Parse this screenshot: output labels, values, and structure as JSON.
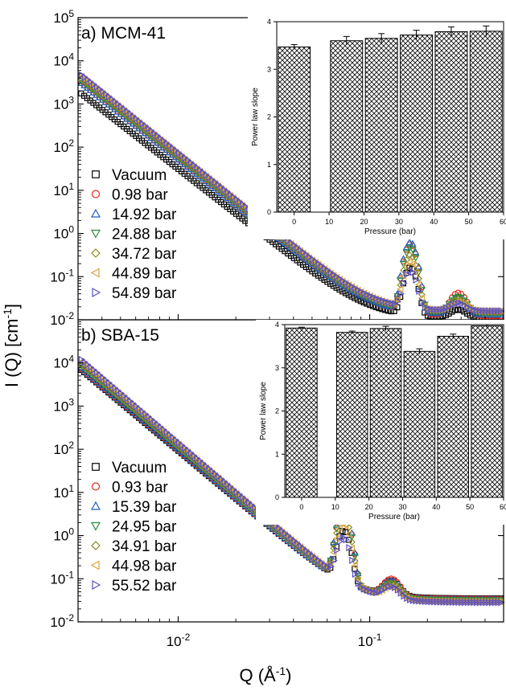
{
  "figure": {
    "ylabel": "I (Q) [cm",
    "ylabel_sup": "-1",
    "ylabel_end": "]",
    "xlabel": "Q (Å",
    "xlabel_sup": "-1",
    "xlabel_end": ")"
  },
  "chart_data": [
    {
      "type": "scatter",
      "panel_label": "a) MCM-41",
      "x_scale": "log",
      "y_scale": "log",
      "xlim": [
        0.003,
        0.5
      ],
      "ylim": [
        0.01,
        100000
      ],
      "x_ticks": [
        {
          "base": "10",
          "exp": "-2",
          "value": 0.01
        },
        {
          "base": "10",
          "exp": "-1",
          "value": 0.1
        }
      ],
      "y_ticks": [
        {
          "base": "10",
          "exp": "-2",
          "value": 0.01
        },
        {
          "base": "10",
          "exp": "-1",
          "value": 0.1
        },
        {
          "base": "10",
          "exp": "0",
          "value": 1
        },
        {
          "base": "10",
          "exp": "1",
          "value": 10
        },
        {
          "base": "10",
          "exp": "2",
          "value": 100
        },
        {
          "base": "10",
          "exp": "3",
          "value": 1000
        },
        {
          "base": "10",
          "exp": "4",
          "value": 10000
        },
        {
          "base": "10",
          "exp": "5",
          "value": 100000
        }
      ],
      "legend_position": "left",
      "series": [
        {
          "name": "Vacuum",
          "marker": "square",
          "color": "#000000",
          "y_at_qmin": 2000,
          "slope": -3.45,
          "peak_height": 0.15,
          "bg": 0.011,
          "peak2_height": 0.006
        },
        {
          "name": "0.98 bar",
          "marker": "circle",
          "color": "#e8291c",
          "y_at_qmin": 3500,
          "slope": -3.48,
          "peak_height": 0.55,
          "bg": 0.012,
          "peak2_height": 0.03
        },
        {
          "name": "14.92 bar",
          "marker": "triangle-up",
          "color": "#1f5fbf",
          "y_at_qmin": 3500,
          "slope": -3.5,
          "peak_height": 0.62,
          "bg": 0.013,
          "peak2_height": 0.02
        },
        {
          "name": "24.88 bar",
          "marker": "triangle-down",
          "color": "#2e8b3a",
          "y_at_qmin": 4000,
          "slope": -3.52,
          "peak_height": 0.45,
          "bg": 0.014,
          "peak2_height": 0.02
        },
        {
          "name": "34.72 bar",
          "marker": "diamond",
          "color": "#8a8a1f",
          "y_at_qmin": 4500,
          "slope": -3.54,
          "peak_height": 0.3,
          "bg": 0.015,
          "peak2_height": 0.015
        },
        {
          "name": "44.89 bar",
          "marker": "triangle-left",
          "color": "#d9a33c",
          "y_at_qmin": 5000,
          "slope": -3.55,
          "peak_height": 0.2,
          "bg": 0.016,
          "peak2_height": 0.01
        },
        {
          "name": "54.89 bar",
          "marker": "triangle-right",
          "color": "#5b4fc4",
          "y_at_qmin": 5500,
          "slope": -3.57,
          "peak_height": 0.12,
          "bg": 0.016,
          "peak2_height": 0.008
        }
      ],
      "peak_q": 0.163,
      "peak2_q": 0.29,
      "inset": {
        "type": "bar",
        "xlabel": "Pressure (bar)",
        "ylabel": "Power law slope",
        "xlim": [
          -5,
          60
        ],
        "ylim": [
          0,
          4
        ],
        "x_ticks": [
          "0",
          "10",
          "20",
          "30",
          "40",
          "50",
          "60"
        ],
        "y_ticks": [
          "0",
          "1",
          "2",
          "3",
          "4"
        ],
        "x": [
          0,
          15,
          25,
          35,
          45,
          55
        ],
        "values": [
          3.47,
          3.6,
          3.65,
          3.72,
          3.79,
          3.8
        ],
        "errors": [
          0.05,
          0.09,
          0.1,
          0.1,
          0.1,
          0.11
        ],
        "bar_width": 9.2
      }
    },
    {
      "type": "scatter",
      "panel_label": "b) SBA-15",
      "x_scale": "log",
      "y_scale": "log",
      "xlim": [
        0.003,
        0.5
      ],
      "ylim": [
        0.01,
        100000
      ],
      "x_ticks": [
        {
          "base": "10",
          "exp": "-2",
          "value": 0.01
        },
        {
          "base": "10",
          "exp": "-1",
          "value": 0.1
        }
      ],
      "y_ticks": [
        {
          "base": "10",
          "exp": "-2",
          "value": 0.01
        },
        {
          "base": "10",
          "exp": "-1",
          "value": 0.1
        },
        {
          "base": "10",
          "exp": "0",
          "value": 1
        },
        {
          "base": "10",
          "exp": "1",
          "value": 10
        },
        {
          "base": "10",
          "exp": "2",
          "value": 100
        },
        {
          "base": "10",
          "exp": "3",
          "value": 1000
        },
        {
          "base": "10",
          "exp": "4",
          "value": 10000
        }
      ],
      "legend_position": "left",
      "series": [
        {
          "name": "Vacuum",
          "marker": "square",
          "color": "#000000",
          "y_at_qmin": 8000,
          "slope": -3.7,
          "peak_height": 1.2,
          "bg": 0.035,
          "peak2_height": 0.05
        },
        {
          "name": "0.93 bar",
          "marker": "circle",
          "color": "#e8291c",
          "y_at_qmin": 8500,
          "slope": -3.72,
          "peak_height": 3.8,
          "bg": 0.034,
          "peak2_height": 0.06
        },
        {
          "name": "15.39 bar",
          "marker": "triangle-up",
          "color": "#1f5fbf",
          "y_at_qmin": 9000,
          "slope": -3.73,
          "peak_height": 4.2,
          "bg": 0.033,
          "peak2_height": 0.05
        },
        {
          "name": "24.95 bar",
          "marker": "triangle-down",
          "color": "#2e8b3a",
          "y_at_qmin": 10000,
          "slope": -3.75,
          "peak_height": 3.4,
          "bg": 0.032,
          "peak2_height": 0.04
        },
        {
          "name": "34.91 bar",
          "marker": "diamond",
          "color": "#8a8a1f",
          "y_at_qmin": 11000,
          "slope": -3.77,
          "peak_height": 2.6,
          "bg": 0.03,
          "peak2_height": 0.04
        },
        {
          "name": "44.98 bar",
          "marker": "triangle-left",
          "color": "#d9a33c",
          "y_at_qmin": 12500,
          "slope": -3.78,
          "peak_height": 1.8,
          "bg": 0.029,
          "peak2_height": 0.03
        },
        {
          "name": "55.52 bar",
          "marker": "triangle-right",
          "color": "#5b4fc4",
          "y_at_qmin": 14000,
          "slope": -3.8,
          "peak_height": 0.8,
          "bg": 0.028,
          "peak2_height": 0.03
        }
      ],
      "peak_q": 0.073,
      "peak2_q": 0.13,
      "inset": {
        "type": "bar",
        "xlabel": "Pressure (bar)",
        "ylabel": "Power law slope",
        "xlim": [
          -5,
          60
        ],
        "ylim": [
          0,
          4
        ],
        "x_ticks": [
          "0",
          "10",
          "20",
          "30",
          "40",
          "50",
          "60"
        ],
        "y_ticks": [
          "0",
          "1",
          "2",
          "3",
          "4"
        ],
        "x": [
          0,
          15,
          25,
          35,
          45,
          55
        ],
        "values": [
          3.92,
          3.82,
          3.91,
          3.38,
          3.73,
          3.97
        ],
        "errors": [
          0.02,
          0.03,
          0.05,
          0.06,
          0.05,
          0.03
        ],
        "bar_width": 9.2
      }
    }
  ]
}
